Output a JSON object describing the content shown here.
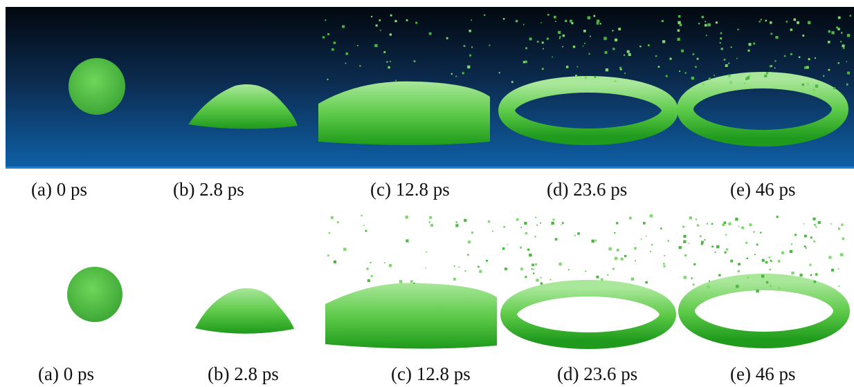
{
  "top_row": {
    "captions": [
      "(a) 0 ps",
      "(b) 2.8 ps",
      "(c) 12.8 ps",
      "(d) 23.6 ps",
      "(e) 46 ps"
    ]
  },
  "bottom_row": {
    "captions": [
      "(a) 0 ps",
      "(b) 2.8 ps",
      "(c) 12.8 ps",
      "(d) 23.6 ps",
      "(e) 46 ps"
    ]
  }
}
